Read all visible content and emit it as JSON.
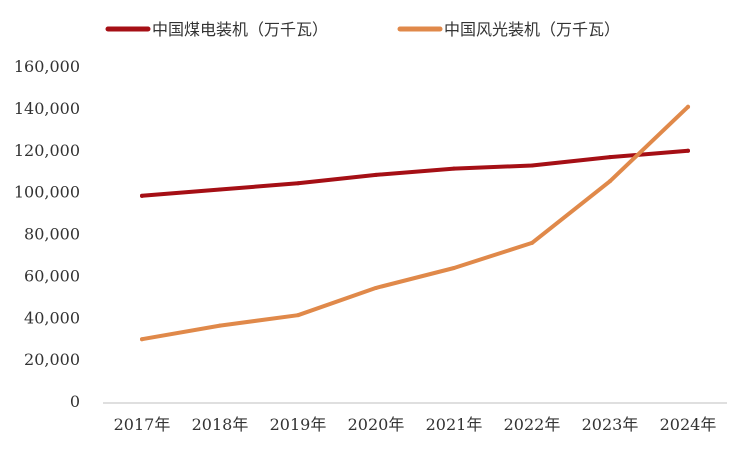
{
  "chart_data": {
    "type": "line",
    "title": "",
    "xlabel": "",
    "ylabel": "",
    "categories": [
      "2017年",
      "2018年",
      "2019年",
      "2020年",
      "2021年",
      "2022年",
      "2023年",
      "2024年"
    ],
    "series": [
      {
        "name": "中国煤电装机（万千瓦）",
        "color": "#a50f15",
        "values": [
          98000,
          101000,
          104000,
          108000,
          111000,
          112500,
          116500,
          119500
        ]
      },
      {
        "name": "中国风光装机（万千瓦）",
        "color": "#e0894a",
        "values": [
          29500,
          36000,
          41000,
          54000,
          63500,
          75500,
          105000,
          140500
        ]
      }
    ],
    "ylim": [
      0,
      160000
    ],
    "yticks": [
      0,
      20000,
      40000,
      60000,
      80000,
      100000,
      120000,
      140000,
      160000
    ],
    "ytick_labels": [
      "0",
      "20,000",
      "40,000",
      "60,000",
      "80,000",
      "100,000",
      "120,000",
      "140,000",
      "160,000"
    ],
    "grid": false,
    "legend_position": "top"
  }
}
